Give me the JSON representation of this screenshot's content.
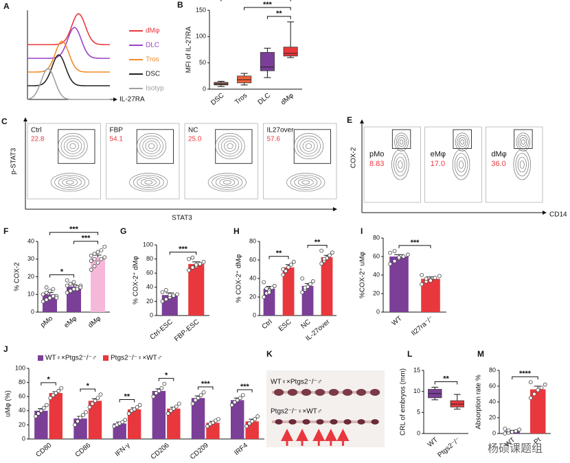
{
  "chart_data": [
    {
      "type": "density",
      "label": "A",
      "xlabel": "IL-27RA",
      "series": [
        {
          "name": "dMφ",
          "color": "#e8383d"
        },
        {
          "name": "DLC",
          "color": "#9b40c8"
        },
        {
          "name": "Tros",
          "color": "#f08a24"
        },
        {
          "name": "DSC",
          "color": "#222222"
        },
        {
          "name": "Isotyp",
          "color": "#a0a0a0"
        }
      ]
    },
    {
      "type": "box",
      "label": "B",
      "ylabel": "MFI of IL-27RA",
      "ylim": [
        0,
        150
      ],
      "yticks": [
        0,
        50,
        100,
        150
      ],
      "categories": [
        "DSC",
        "Tros",
        "DLC",
        "dMφ"
      ],
      "colors": [
        "#8b5a4a",
        "#f0603a",
        "#7b3f98",
        "#e8383d"
      ],
      "boxes": [
        {
          "min": 5,
          "q1": 8,
          "median": 10,
          "q3": 13,
          "max": 15
        },
        {
          "min": 8,
          "q1": 12,
          "median": 18,
          "q3": 25,
          "max": 30
        },
        {
          "min": 22,
          "q1": 35,
          "median": 42,
          "q3": 70,
          "max": 78
        },
        {
          "min": 60,
          "q1": 63,
          "median": 68,
          "q3": 80,
          "max": 128
        }
      ],
      "comparisons": [
        {
          "label": "**",
          "groups": [
            2,
            3
          ]
        },
        {
          "label": "***",
          "groups": [
            1,
            3
          ]
        },
        {
          "label": "***",
          "groups": [
            0,
            3
          ]
        }
      ]
    },
    {
      "type": "flow",
      "label": "C",
      "xlabel": "STAT3",
      "ylabel": "p-STAT3",
      "categories": [
        "Ctrl",
        "FBP",
        "NC",
        "IL27over"
      ],
      "values": [
        22.8,
        54.1,
        25.0,
        57.6
      ],
      "value_labels": [
        "22.8",
        "54.1",
        "25.0",
        "57.6"
      ]
    },
    {
      "type": "flow-small",
      "label": "E",
      "xlabel": "CD14",
      "ylabel": "COX-2",
      "categories": [
        "pMo",
        "eMφ",
        "dMφ"
      ],
      "values": [
        8.83,
        17.0,
        36.0
      ],
      "value_labels": [
        "8.83",
        "17.0",
        "36.0"
      ]
    },
    {
      "type": "bar",
      "label": "F",
      "ylabel": "% COX-2",
      "ylim": [
        0,
        40
      ],
      "yticks": [
        0,
        10,
        20,
        30,
        40
      ],
      "categories": [
        "pMo",
        "eMφ",
        "dMφ"
      ],
      "values": [
        10,
        14.5,
        31
      ],
      "errors": [
        1,
        1,
        1.3
      ],
      "colors": [
        "#7b3f98",
        "#7b3f98",
        "#f5b8d8"
      ],
      "points": [
        [
          6,
          7,
          8,
          9,
          9,
          10,
          11,
          12,
          13,
          8,
          10,
          14
        ],
        [
          11,
          12,
          13,
          14,
          15,
          15,
          16,
          17,
          13,
          14,
          18,
          12
        ],
        [
          24,
          26,
          28,
          30,
          31,
          32,
          33,
          34,
          35,
          37,
          29,
          30
        ]
      ],
      "comparisons": [
        {
          "label": "*",
          "groups": [
            0,
            1
          ]
        },
        {
          "label": "***",
          "groups": [
            1,
            2
          ]
        },
        {
          "label": "***",
          "groups": [
            0,
            2
          ]
        }
      ]
    },
    {
      "type": "bar",
      "label": "G",
      "ylabel": "% COX-2⁺ dMφ",
      "ylim": [
        0,
        100
      ],
      "yticks": [
        0,
        20,
        40,
        60,
        80,
        100
      ],
      "categories": [
        "Ctrl-ESC",
        "FBP-ESC"
      ],
      "values": [
        29,
        73
      ],
      "errors": [
        3,
        3
      ],
      "colors": [
        "#7b3f98",
        "#e8383d"
      ],
      "points": [
        [
          20,
          23,
          26,
          28,
          30,
          33,
          36,
          29
        ],
        [
          64,
          68,
          70,
          73,
          76,
          80,
          82,
          72
        ]
      ],
      "comparisons": [
        {
          "label": "***",
          "groups": [
            0,
            1
          ]
        }
      ]
    },
    {
      "type": "bar",
      "label": "H",
      "ylabel": "% COX-2⁺ dMφ",
      "ylim": [
        0,
        80
      ],
      "yticks": [
        0,
        20,
        40,
        60,
        80
      ],
      "categories": [
        "Ctrl",
        "ESC",
        "NC",
        "IL-27over"
      ],
      "values": [
        29,
        52,
        32,
        63
      ],
      "errors": [
        2.5,
        3,
        2.5,
        2
      ],
      "colors": [
        "#7b3f98",
        "#e8383d",
        "#7b3f98",
        "#e8383d"
      ],
      "points": [
        [
          20,
          24,
          27,
          30,
          32,
          36,
          29,
          25
        ],
        [
          44,
          48,
          52,
          55,
          58,
          50
        ],
        [
          25,
          28,
          31,
          34,
          37,
          40,
          30
        ],
        [
          56,
          59,
          62,
          65,
          68,
          70,
          61
        ]
      ],
      "comparisons": [
        {
          "label": "**",
          "groups": [
            0,
            1
          ]
        },
        {
          "label": "**",
          "groups": [
            2,
            3
          ]
        }
      ]
    },
    {
      "type": "bar",
      "label": "I",
      "ylabel": "%COX-2⁺ uMφ",
      "ylim": [
        0,
        80
      ],
      "yticks": [
        0,
        20,
        40,
        60,
        80
      ],
      "categories": [
        "WT",
        "Il27ra⁻/⁻"
      ],
      "values": [
        60,
        36
      ],
      "errors": [
        2,
        2
      ],
      "colors": [
        "#7b3f98",
        "#e8383d"
      ],
      "points": [
        [
          52,
          55,
          58,
          60,
          62,
          64,
          66,
          59
        ],
        [
          30,
          33,
          35,
          37,
          39,
          40,
          36,
          34
        ]
      ],
      "comparisons": [
        {
          "label": "***",
          "groups": [
            0,
            1
          ]
        }
      ]
    },
    {
      "type": "grouped-bar",
      "label": "J",
      "ylabel": "uMφ (%)",
      "ylim": [
        0,
        100
      ],
      "yticks": [
        0,
        20,
        40,
        60,
        80,
        100
      ],
      "categories": [
        "CD80",
        "CD86",
        "IFN-γ",
        "CD206",
        "CD209",
        "IRF4"
      ],
      "series": [
        {
          "name": "WT♀×Ptgs2⁻/⁻♂",
          "color": "#7b3f98",
          "values": [
            40,
            29,
            22,
            68,
            58,
            55
          ],
          "errors": [
            3,
            3,
            2,
            3,
            3,
            3
          ],
          "points": [
            [
              32,
              36,
              40,
              44,
              48
            ],
            [
              20,
              25,
              30,
              34,
              38
            ],
            [
              18,
              20,
              22,
              24,
              27
            ],
            [
              60,
              65,
              68,
              72,
              78
            ],
            [
              50,
              55,
              58,
              62,
              66
            ],
            [
              48,
              52,
              55,
              58,
              62
            ]
          ]
        },
        {
          "name": "Ptgs2⁻/⁻♀×WT♂",
          "color": "#e8383d",
          "values": [
            65,
            54,
            42,
            43,
            23,
            25
          ],
          "errors": [
            2,
            3,
            2,
            2,
            2,
            3
          ],
          "points": [
            [
              58,
              62,
              65,
              68,
              72
            ],
            [
              45,
              50,
              54,
              58,
              63
            ],
            [
              36,
              40,
              42,
              45,
              48
            ],
            [
              36,
              40,
              43,
              46,
              50
            ],
            [
              18,
              21,
              23,
              26,
              28
            ],
            [
              18,
              22,
              25,
              28,
              32
            ]
          ]
        }
      ],
      "annotations": [
        "*",
        "*",
        "**",
        "*",
        "***",
        "***"
      ]
    },
    {
      "type": "image",
      "label": "K",
      "captions": [
        "WT♀×Ptgs2⁻/⁻♂",
        "Ptgs2⁻/⁻♀×WT♂"
      ]
    },
    {
      "type": "box",
      "label": "L",
      "ylabel": "CRL of embryos (mm)",
      "ylim": [
        0,
        15
      ],
      "yticks": [
        0,
        5,
        10,
        15
      ],
      "categories": [
        "WT",
        "Ptgs2⁻/⁻"
      ],
      "colors": [
        "#7b3f98",
        "#e8383d"
      ],
      "boxes": [
        {
          "min": 8,
          "q1": 8.5,
          "median": 9.5,
          "q3": 10.5,
          "max": 11
        },
        {
          "min": 5.8,
          "q1": 6.3,
          "median": 7,
          "q3": 7.8,
          "max": 9.3
        }
      ],
      "comparisons": [
        {
          "label": "**",
          "groups": [
            0,
            1
          ]
        }
      ]
    },
    {
      "type": "bar",
      "label": "M",
      "ylabel": "Absorption rate %",
      "ylim": [
        0,
        80
      ],
      "yticks": [
        0,
        20,
        40,
        60,
        80
      ],
      "categories": [
        "WT",
        "Pt"
      ],
      "values": [
        3,
        56
      ],
      "errors": [
        1,
        4
      ],
      "colors": [
        "#7b3f98",
        "#e8383d"
      ],
      "points": [
        [
          0,
          1,
          2,
          3,
          5,
          6,
          4
        ],
        [
          45,
          50,
          55,
          58,
          62,
          65
        ]
      ],
      "comparisons": [
        {
          "label": "****",
          "groups": [
            0,
            1
          ]
        }
      ]
    }
  ],
  "watermark": "杨硕课题组"
}
